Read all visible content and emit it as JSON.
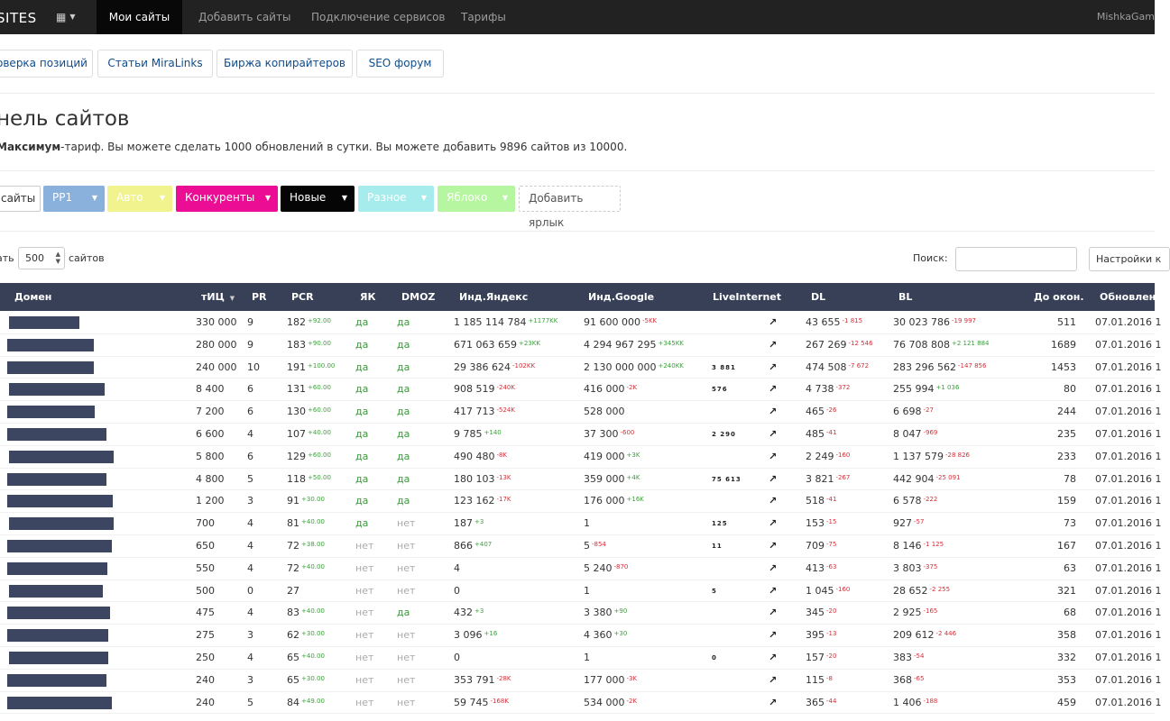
{
  "navbar": {
    "brand": "SITES",
    "items": [
      {
        "label": "Мои сайты",
        "active": true
      },
      {
        "label": "Добавить сайты",
        "active": false
      },
      {
        "label": "Подключение сервисов",
        "active": false
      },
      {
        "label": "Тарифы",
        "active": false
      }
    ],
    "user": "MishkaGam"
  },
  "subtabs": [
    "оверка позиций",
    "Статьи MiraLinks",
    "Биржа копирайтеров",
    "SEO форум"
  ],
  "page": {
    "title": "нель сайтов",
    "plan_name": "Максимум",
    "plan_text": "-тариф. Вы можете сделать 1000 обновлений в сутки. Вы можете добавить 9896 сайтов из 10000."
  },
  "labels": {
    "all": "сайты",
    "items": [
      {
        "label": "PP1",
        "bg": "#8ab0dc",
        "fg": "#ffffff"
      },
      {
        "label": "Авто",
        "bg": "#f1f38e",
        "fg": "#ffffff"
      },
      {
        "label": "Конкуренты",
        "bg": "#ec0d95",
        "fg": "#ffffff"
      },
      {
        "label": "Новые",
        "bg": "#050505",
        "fg": "#ffffff"
      },
      {
        "label": "Разное",
        "bg": "#a6ecec",
        "fg": "#ffffff"
      },
      {
        "label": "Яблоко",
        "bg": "#b6f6a0",
        "fg": "#ffffff"
      }
    ],
    "add": "Добавить ярлык"
  },
  "controls": {
    "show_label": "ать",
    "page_size": "500",
    "sites_label": "сайтов",
    "search_label": "Поиск:",
    "settings": "Настройки к"
  },
  "table": {
    "headers": {
      "domain": "Домен",
      "tic": "тИЦ",
      "pr": "PR",
      "pcr": "PCR",
      "yak": "ЯК",
      "dmoz": "DMOZ",
      "yandex": "Инд.Яндекс",
      "google": "Инд.Google",
      "liveinternet": "LiveInternet",
      "dl": "DL",
      "bl": "BL",
      "days": "До окон.",
      "updated": "Обновлен"
    },
    "rows": [
      {
        "tic": "330 000",
        "pr": "9",
        "pcr": "182",
        "pcr_d": "+92.00",
        "yak": "да",
        "dmoz": "да",
        "ya": "1 185 114 784",
        "ya_d": "+1177KK",
        "g": "91 600 000",
        "g_d": "-5KK",
        "li": "",
        "dl": "43 655",
        "dl_d": "-1 815",
        "bl": "30 023 786",
        "bl_d": "-19 997",
        "days": "511",
        "upd": "07.01.2016 1"
      },
      {
        "tic": "280 000",
        "pr": "9",
        "pcr": "183",
        "pcr_d": "+90.00",
        "yak": "да",
        "dmoz": "да",
        "ya": "671 063 659",
        "ya_d": "+23KK",
        "g": "4 294 967 295",
        "g_d": "+345KK",
        "li": "",
        "dl": "267 269",
        "dl_d": "-12 546",
        "bl": "76 708 808",
        "bl_d": "+2 121 884",
        "days": "1689",
        "upd": "07.01.2016 1"
      },
      {
        "tic": "240 000",
        "pr": "10",
        "pcr": "191",
        "pcr_d": "+100.00",
        "yak": "да",
        "dmoz": "да",
        "ya": "29 386 624",
        "ya_d": "-102KK",
        "g": "2 130 000 000",
        "g_d": "+240KK",
        "li": "3 881",
        "dl": "474 508",
        "dl_d": "-7 672",
        "bl": "283 296 562",
        "bl_d": "-147 856",
        "days": "1453",
        "upd": "07.01.2016 1"
      },
      {
        "tic": "8 400",
        "pr": "6",
        "pcr": "131",
        "pcr_d": "+60.00",
        "yak": "да",
        "dmoz": "да",
        "ya": "908 519",
        "ya_d": "-240K",
        "g": "416 000",
        "g_d": "-2K",
        "li": "576",
        "dl": "4 738",
        "dl_d": "-372",
        "bl": "255 994",
        "bl_d": "+1 036",
        "days": "80",
        "upd": "07.01.2016 1"
      },
      {
        "tic": "7 200",
        "pr": "6",
        "pcr": "130",
        "pcr_d": "+60.00",
        "yak": "да",
        "dmoz": "да",
        "ya": "417 713",
        "ya_d": "-524K",
        "g": "528 000",
        "g_d": "",
        "li": "",
        "dl": "465",
        "dl_d": "-26",
        "bl": "6 698",
        "bl_d": "-27",
        "days": "244",
        "upd": "07.01.2016 1"
      },
      {
        "tic": "6 600",
        "pr": "4",
        "pcr": "107",
        "pcr_d": "+40.00",
        "yak": "да",
        "dmoz": "да",
        "ya": "9 785",
        "ya_d": "+140",
        "g": "37 300",
        "g_d": "-600",
        "li": "2 290",
        "dl": "485",
        "dl_d": "-41",
        "bl": "8 047",
        "bl_d": "-969",
        "days": "235",
        "upd": "07.01.2016 1"
      },
      {
        "tic": "5 800",
        "pr": "6",
        "pcr": "129",
        "pcr_d": "+60.00",
        "yak": "да",
        "dmoz": "да",
        "ya": "490 480",
        "ya_d": "-8K",
        "g": "419 000",
        "g_d": "+3K",
        "li": "",
        "dl": "2 249",
        "dl_d": "-160",
        "bl": "1 137 579",
        "bl_d": "-28 826",
        "days": "233",
        "upd": "07.01.2016 1"
      },
      {
        "tic": "4 800",
        "pr": "5",
        "pcr": "118",
        "pcr_d": "+50.00",
        "yak": "да",
        "dmoz": "да",
        "ya": "180 103",
        "ya_d": "-13K",
        "g": "359 000",
        "g_d": "+4K",
        "li": "75 613",
        "dl": "3 821",
        "dl_d": "-267",
        "bl": "442 904",
        "bl_d": "-25 091",
        "days": "78",
        "upd": "07.01.2016 1"
      },
      {
        "tic": "1 200",
        "pr": "3",
        "pcr": "91",
        "pcr_d": "+30.00",
        "yak": "да",
        "dmoz": "да",
        "ya": "123 162",
        "ya_d": "-17K",
        "g": "176 000",
        "g_d": "+16K",
        "li": "",
        "dl": "518",
        "dl_d": "-41",
        "bl": "6 578",
        "bl_d": "-222",
        "days": "159",
        "upd": "07.01.2016 1"
      },
      {
        "tic": "700",
        "pr": "4",
        "pcr": "81",
        "pcr_d": "+40.00",
        "yak": "да",
        "dmoz": "нет",
        "ya": "187",
        "ya_d": "+3",
        "g": "1",
        "g_d": "",
        "li": "125",
        "dl": "153",
        "dl_d": "-15",
        "bl": "927",
        "bl_d": "-57",
        "days": "73",
        "upd": "07.01.2016 1"
      },
      {
        "tic": "650",
        "pr": "4",
        "pcr": "72",
        "pcr_d": "+38.00",
        "yak": "нет",
        "dmoz": "нет",
        "ya": "866",
        "ya_d": "+407",
        "g": "5",
        "g_d": "-854",
        "li": "11",
        "dl": "709",
        "dl_d": "-75",
        "bl": "8 146",
        "bl_d": "-1 125",
        "days": "167",
        "upd": "07.01.2016 1"
      },
      {
        "tic": "550",
        "pr": "4",
        "pcr": "72",
        "pcr_d": "+40.00",
        "yak": "нет",
        "dmoz": "нет",
        "ya": "4",
        "ya_d": "",
        "g": "5 240",
        "g_d": "-870",
        "li": "",
        "dl": "413",
        "dl_d": "-63",
        "bl": "3 803",
        "bl_d": "-375",
        "days": "63",
        "upd": "07.01.2016 1"
      },
      {
        "tic": "500",
        "pr": "0",
        "pcr": "27",
        "pcr_d": "",
        "yak": "нет",
        "dmoz": "нет",
        "ya": "0",
        "ya_d": "",
        "g": "1",
        "g_d": "",
        "li": "5",
        "dl": "1 045",
        "dl_d": "-160",
        "bl": "28 652",
        "bl_d": "-2 255",
        "days": "321",
        "upd": "07.01.2016 1"
      },
      {
        "tic": "475",
        "pr": "4",
        "pcr": "83",
        "pcr_d": "+40.00",
        "yak": "нет",
        "dmoz": "да",
        "ya": "432",
        "ya_d": "+3",
        "g": "3 380",
        "g_d": "+90",
        "li": "",
        "dl": "345",
        "dl_d": "-20",
        "bl": "2 925",
        "bl_d": "-165",
        "days": "68",
        "upd": "07.01.2016 1"
      },
      {
        "tic": "275",
        "pr": "3",
        "pcr": "62",
        "pcr_d": "+30.00",
        "yak": "нет",
        "dmoz": "нет",
        "ya": "3 096",
        "ya_d": "+16",
        "g": "4 360",
        "g_d": "+30",
        "li": "",
        "dl": "395",
        "dl_d": "-13",
        "bl": "209 612",
        "bl_d": "-2 446",
        "days": "358",
        "upd": "07.01.2016 1"
      },
      {
        "tic": "250",
        "pr": "4",
        "pcr": "65",
        "pcr_d": "+40.00",
        "yak": "нет",
        "dmoz": "нет",
        "ya": "0",
        "ya_d": "",
        "g": "1",
        "g_d": "",
        "li": "0",
        "dl": "157",
        "dl_d": "-20",
        "bl": "383",
        "bl_d": "-54",
        "days": "332",
        "upd": "07.01.2016 1"
      },
      {
        "tic": "240",
        "pr": "3",
        "pcr": "65",
        "pcr_d": "+30.00",
        "yak": "нет",
        "dmoz": "нет",
        "ya": "353 791",
        "ya_d": "-28K",
        "g": "177 000",
        "g_d": "-3K",
        "li": "",
        "dl": "115",
        "dl_d": "-8",
        "bl": "368",
        "bl_d": "-65",
        "days": "353",
        "upd": "07.01.2016 1"
      },
      {
        "tic": "240",
        "pr": "5",
        "pcr": "84",
        "pcr_d": "+49.00",
        "yak": "нет",
        "dmoz": "нет",
        "ya": "59 745",
        "ya_d": "-168K",
        "g": "534 000",
        "g_d": "-2K",
        "li": "",
        "dl": "365",
        "dl_d": "-44",
        "bl": "1 406",
        "bl_d": "-188",
        "days": "459",
        "upd": "07.01.2016 1"
      }
    ]
  },
  "colors": {
    "navbar": "#222222",
    "thead": "#384058",
    "up": "#3ca03c",
    "down": "#d2303a",
    "yes": "#3a9a3a",
    "no": "#aaaaaa",
    "link": "#0e4c8c"
  }
}
